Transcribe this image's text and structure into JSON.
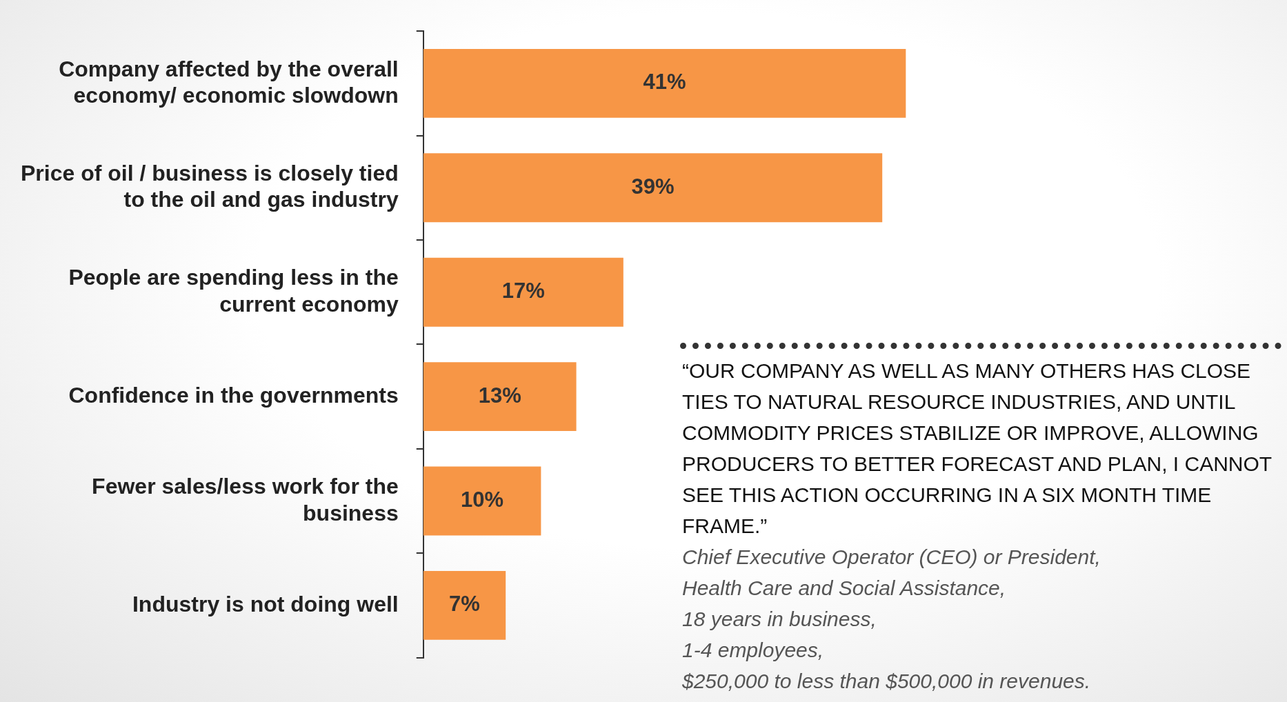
{
  "chart_data": {
    "type": "bar",
    "orientation": "horizontal",
    "categories": [
      "Company affected by the overall economy/ economic slowdown",
      "Price of oil / business is closely tied to the oil and gas industry",
      "People are spending less in the current economy",
      "Confidence in the governments",
      "Fewer sales/less work for the business",
      "Industry is not doing well"
    ],
    "values": [
      41,
      39,
      17,
      13,
      10,
      7
    ],
    "color": "#f79646",
    "value_labels": [
      "41%",
      "39%",
      "17%",
      "13%",
      "10%",
      "7%"
    ],
    "annotations": [
      "“OUR COMPANY AS WELL AS MANY OTHERS HAS CLOSE TIES TO NATURAL RESOURCE INDUSTRIES, AND UNTIL COMMODITY PRICES STABILIZE OR IMPROVE, ALLOWING PRODUCERS TO BETTER FORECAST AND PLAN, I CANNOT SEE THIS ACTION OCCURRING IN A SIX MONTH TIME FRAME.”",
      "Chief Executive Operator (CEO) or President,",
      "Health Care and Social Assistance,",
      "18 years in business,",
      "1-4 employees,",
      "$250,000 to less than $500,000 in revenues."
    ]
  }
}
